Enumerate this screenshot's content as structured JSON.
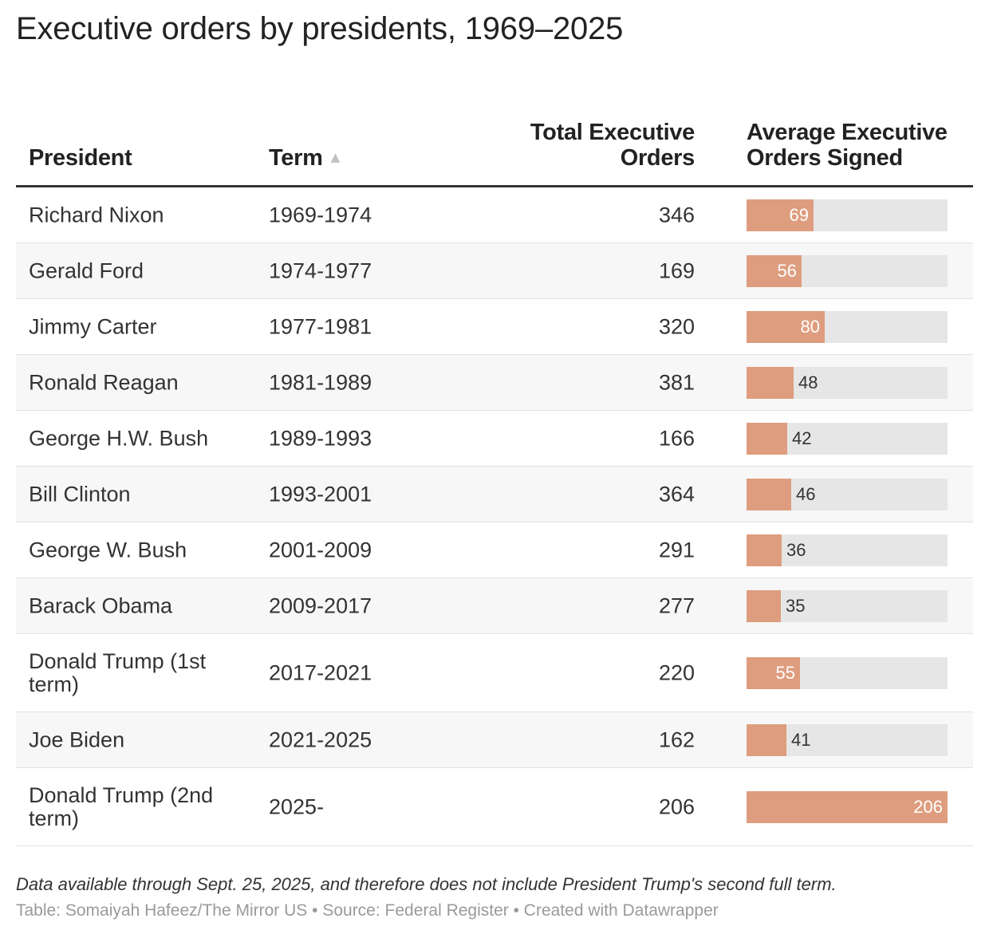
{
  "title": "Executive orders by presidents, 1969–2025",
  "headers": {
    "president": "President",
    "term": "Term",
    "sort_indicator": "▲",
    "total": "Total Executive Orders",
    "average": "Average Executive Orders Signed"
  },
  "chart_data": {
    "type": "table",
    "title": "Executive orders by presidents, 1969–2025",
    "columns": [
      "President",
      "Term",
      "Total Executive Orders",
      "Average Executive Orders Signed"
    ],
    "bar_column": "Average Executive Orders Signed",
    "bar_max": 206,
    "rows": [
      {
        "president": "Richard Nixon",
        "term": "1969-1974",
        "total": 346,
        "average": 69
      },
      {
        "president": "Gerald Ford",
        "term": "1974-1977",
        "total": 169,
        "average": 56
      },
      {
        "president": "Jimmy Carter",
        "term": "1977-1981",
        "total": 320,
        "average": 80
      },
      {
        "president": "Ronald Reagan",
        "term": "1981-1989",
        "total": 381,
        "average": 48
      },
      {
        "president": "George H.W. Bush",
        "term": "1989-1993",
        "total": 166,
        "average": 42
      },
      {
        "president": "Bill Clinton",
        "term": "1993-2001",
        "total": 364,
        "average": 46
      },
      {
        "president": "George W. Bush",
        "term": "2001-2009",
        "total": 291,
        "average": 36
      },
      {
        "president": "Barack Obama",
        "term": "2009-2017",
        "total": 277,
        "average": 35
      },
      {
        "president": "Donald Trump (1st term)",
        "term": "2017-2021",
        "total": 220,
        "average": 55
      },
      {
        "president": "Joe Biden",
        "term": "2021-2025",
        "total": 162,
        "average": 41
      },
      {
        "president": "Donald Trump (2nd term)",
        "term": "2025-",
        "total": 206,
        "average": 206
      }
    ]
  },
  "colors": {
    "bar": "#de9d7e",
    "track": "#e6e6e6"
  },
  "footer": {
    "note": "Data available through Sept. 25, 2025, and therefore does not include President Trump's second full term.",
    "credits": "Table: Somaiyah Hafeez/The Mirror US • Source: Federal Register • Created with Datawrapper"
  }
}
